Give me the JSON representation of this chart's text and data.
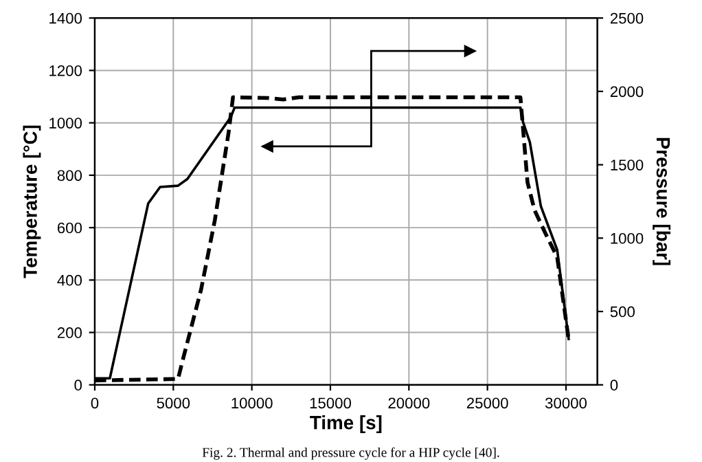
{
  "chart_data": {
    "type": "line",
    "xlabel": "Time [s]",
    "ylabel": "Temperature [°C]",
    "y2label": "Pressure [bar]",
    "annotations": [
      "Fig. 2. Thermal and pressure cycle for a HIP cycle [40]."
    ],
    "series": [
      {
        "name": null,
        "color": "#000000",
        "line_style": "solid",
        "x": [
          0,
          960,
          3400,
          4160,
          5300,
          5900,
          8660,
          8900,
          12000,
          20000,
          27100,
          27260,
          27700,
          28400,
          29440,
          30170
        ],
        "values": [
          25,
          25,
          692,
          755,
          760,
          786,
          1022,
          1058,
          1058,
          1058,
          1058,
          1004,
          926,
          682,
          515,
          175
        ]
      },
      {
        "name": null,
        "color": "#000000",
        "axis": "y2",
        "line_style": "dashed",
        "x": [
          0,
          5300,
          5580,
          6770,
          7640,
          8520,
          8800,
          11000,
          12000,
          13000,
          20000,
          27100,
          27550,
          28000,
          28700,
          29440,
          30170
        ],
        "values": [
          30,
          40,
          160,
          650,
          1120,
          1720,
          1960,
          1955,
          1945,
          1960,
          1960,
          1960,
          1380,
          1190,
          1030,
          870,
          310
        ]
      }
    ],
    "xlim": [
      0,
      32000
    ],
    "xticks": [
      0,
      5000,
      10000,
      15000,
      20000,
      25000,
      30000
    ],
    "ylim": [
      0,
      1400
    ],
    "yticks": [
      0,
      200,
      400,
      600,
      800,
      1000,
      1200,
      1400
    ],
    "y2lim": [
      0,
      2500
    ],
    "y2ticks": [
      0,
      500,
      1000,
      1500,
      2000,
      2500
    ],
    "grid": true,
    "marker": "none"
  }
}
